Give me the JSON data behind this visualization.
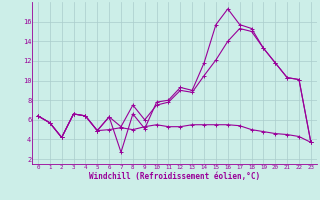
{
  "xlabel": "Windchill (Refroidissement éolien,°C)",
  "bg_color": "#cceee8",
  "line_color": "#990099",
  "xlim": [
    -0.5,
    23.5
  ],
  "ylim": [
    1.5,
    18.0
  ],
  "xticks": [
    0,
    1,
    2,
    3,
    4,
    5,
    6,
    7,
    8,
    9,
    10,
    11,
    12,
    13,
    14,
    15,
    16,
    17,
    18,
    19,
    20,
    21,
    22,
    23
  ],
  "yticks": [
    2,
    4,
    6,
    8,
    10,
    12,
    14,
    16
  ],
  "grid_color": "#aacccc",
  "series": [
    {
      "x": [
        0,
        1,
        2,
        3,
        4,
        5,
        6,
        7,
        8,
        9,
        10,
        11,
        12,
        13,
        14,
        15,
        16,
        17,
        18,
        19,
        20,
        21,
        22,
        23
      ],
      "y": [
        6.4,
        5.7,
        4.2,
        6.6,
        6.4,
        4.9,
        6.3,
        2.7,
        6.6,
        5.1,
        7.8,
        8.0,
        9.3,
        9.0,
        11.8,
        15.7,
        17.3,
        15.7,
        15.3,
        13.3,
        11.8,
        10.3,
        10.1,
        3.7
      ]
    },
    {
      "x": [
        0,
        1,
        2,
        3,
        4,
        5,
        6,
        7,
        8,
        9,
        10,
        11,
        12,
        13,
        14,
        15,
        16,
        17,
        18,
        19,
        20,
        21,
        22,
        23
      ],
      "y": [
        6.4,
        5.7,
        4.2,
        6.6,
        6.4,
        4.9,
        6.3,
        5.3,
        7.5,
        6.0,
        7.5,
        7.8,
        9.0,
        8.8,
        10.5,
        12.1,
        14.0,
        15.3,
        15.0,
        13.3,
        11.8,
        10.3,
        10.1,
        3.7
      ]
    },
    {
      "x": [
        0,
        1,
        2,
        3,
        4,
        5,
        6,
        7,
        8,
        9,
        10,
        11,
        12,
        13,
        14,
        15,
        16,
        17,
        18,
        19,
        20,
        21,
        22,
        23
      ],
      "y": [
        6.4,
        5.7,
        4.2,
        6.6,
        6.4,
        4.9,
        5.0,
        5.2,
        5.0,
        5.3,
        5.5,
        5.3,
        5.3,
        5.5,
        5.5,
        5.5,
        5.5,
        5.4,
        5.0,
        4.8,
        4.6,
        4.5,
        4.3,
        3.7
      ]
    }
  ]
}
